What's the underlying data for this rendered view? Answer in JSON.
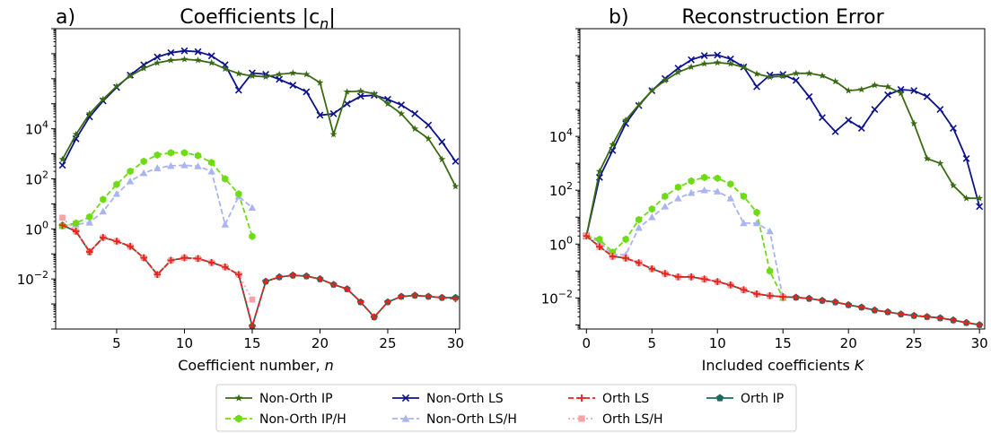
{
  "chart_data": [
    {
      "type": "line",
      "panel_label": "a)",
      "title": "Coefficients |c",
      "title_sub": "n",
      "title_end": "|",
      "xlabel": "Coefficient number, ",
      "xlabel_italic": "n",
      "yscale": "log",
      "xlim": [
        0.5,
        30.3
      ],
      "ylim": [
        0.0001,
        100000000
      ],
      "x_ticks": [
        5,
        10,
        15,
        20,
        25,
        30
      ],
      "y_ticks": [
        {
          "value": 0.01,
          "base": "10",
          "exp": "−2"
        },
        {
          "value": 1,
          "base": "10",
          "exp": "0"
        },
        {
          "value": 100,
          "base": "10",
          "exp": "2"
        },
        {
          "value": 10000,
          "base": "10",
          "exp": "4"
        }
      ],
      "series": [
        {
          "key": "nonorth_ip",
          "x": [
            1,
            2,
            3,
            4,
            5,
            6,
            7,
            8,
            9,
            10,
            11,
            12,
            13,
            14,
            15,
            16,
            17,
            18,
            19,
            20,
            21,
            22,
            23,
            24,
            25,
            26,
            27,
            28,
            29,
            30
          ],
          "y": [
            600,
            6000,
            40000,
            150000,
            500000,
            1300000,
            2600000,
            4300000,
            5500000,
            6000000,
            5500000,
            4300000,
            2500000,
            1600000,
            1300000,
            1200000,
            1500000,
            1700000,
            1500000,
            700000,
            6000,
            300000,
            320000,
            250000,
            100000,
            40000,
            10000,
            4000,
            600,
            50
          ]
        },
        {
          "key": "nonorth_ls",
          "x": [
            1,
            2,
            3,
            4,
            5,
            6,
            7,
            8,
            9,
            10,
            11,
            12,
            13,
            14,
            15,
            16,
            17,
            18,
            19,
            20,
            21,
            22,
            23,
            24,
            25,
            26,
            27,
            28,
            29,
            30
          ],
          "y": [
            350,
            4000,
            30000,
            130000,
            450000,
            1400000,
            3600000,
            7400000,
            11000000,
            13000000,
            12000000,
            8200000,
            3600000,
            350000,
            1700000,
            1500000,
            950000,
            550000,
            300000,
            35000,
            40000,
            100000,
            200000,
            220000,
            150000,
            90000,
            40000,
            14000,
            3000,
            500
          ]
        },
        {
          "key": "nonorth_ip_h",
          "x": [
            1,
            2,
            3,
            4,
            5,
            6,
            7,
            8,
            9,
            10,
            11,
            12,
            13,
            14,
            15
          ],
          "y": [
            1.3,
            1.7,
            3,
            15,
            60,
            200,
            500,
            900,
            1100,
            1100,
            850,
            450,
            100,
            25,
            0.5
          ]
        },
        {
          "key": "nonorth_ls_h",
          "x": [
            1,
            2,
            3,
            4,
            5,
            6,
            7,
            8,
            9,
            10,
            11,
            12,
            13,
            14,
            15
          ],
          "y": [
            1.3,
            1.5,
            1.8,
            5,
            25,
            80,
            170,
            270,
            330,
            350,
            320,
            200,
            1.5,
            20,
            7
          ]
        },
        {
          "key": "orth_ls",
          "x": [
            1,
            2,
            3,
            4,
            5,
            6,
            7,
            8,
            9,
            10,
            11,
            12,
            13,
            14,
            15,
            16,
            17,
            18,
            19,
            20,
            21,
            22,
            23,
            24,
            25,
            26,
            27,
            28,
            29,
            30
          ],
          "y": [
            1.4,
            0.8,
            0.12,
            0.45,
            0.32,
            0.2,
            0.07,
            0.015,
            0.055,
            0.07,
            0.065,
            0.045,
            0.03,
            0.015,
            0.00013,
            0.008,
            0.012,
            0.014,
            0.013,
            0.01,
            0.006,
            0.004,
            0.0012,
            0.0003,
            0.0012,
            0.002,
            0.0022,
            0.002,
            0.0018,
            0.0016
          ]
        },
        {
          "key": "orth_ls_h",
          "x": [
            1,
            2,
            3,
            4,
            5,
            6,
            7,
            8,
            9,
            10,
            11,
            12,
            13,
            14,
            15
          ],
          "y": [
            2.8,
            0.8,
            0.13,
            0.45,
            0.32,
            0.2,
            0.07,
            0.015,
            0.055,
            0.07,
            0.065,
            0.045,
            0.03,
            0.015,
            0.0015
          ]
        },
        {
          "key": "orth_ip",
          "x": [
            1,
            2,
            3,
            4,
            5,
            6,
            7,
            8,
            9,
            10,
            11,
            12,
            13,
            14,
            15,
            16,
            17,
            18,
            19,
            20,
            21,
            22,
            23,
            24,
            25,
            26,
            27,
            28,
            29,
            30
          ],
          "y": [
            1.4,
            0.8,
            0.12,
            0.45,
            0.32,
            0.2,
            0.07,
            0.015,
            0.055,
            0.07,
            0.065,
            0.045,
            0.03,
            0.015,
            0.00013,
            0.008,
            0.012,
            0.014,
            0.013,
            0.01,
            0.006,
            0.004,
            0.0012,
            0.0003,
            0.0012,
            0.002,
            0.0022,
            0.002,
            0.0018,
            0.0018
          ]
        }
      ]
    },
    {
      "type": "line",
      "panel_label": "b)",
      "title": "Reconstruction Error",
      "xlabel": "Included coefficients ",
      "xlabel_italic": "K",
      "yscale": "log",
      "xlim": [
        -0.5,
        30.4
      ],
      "ylim": [
        0.0007,
        100000000
      ],
      "x_ticks": [
        0,
        5,
        10,
        15,
        20,
        25,
        30
      ],
      "y_ticks": [
        {
          "value": 0.01,
          "base": "10",
          "exp": "−2"
        },
        {
          "value": 1,
          "base": "10",
          "exp": "0"
        },
        {
          "value": 100,
          "base": "10",
          "exp": "2"
        },
        {
          "value": 10000,
          "base": "10",
          "exp": "4"
        }
      ],
      "series": [
        {
          "key": "nonorth_ip",
          "x": [
            0,
            1,
            2,
            3,
            4,
            5,
            6,
            7,
            8,
            9,
            10,
            11,
            12,
            13,
            14,
            15,
            16,
            17,
            18,
            19,
            20,
            21,
            22,
            23,
            24,
            25,
            26,
            27,
            28,
            29,
            30
          ],
          "y": [
            2,
            500,
            5000,
            40000,
            150000,
            500000,
            1200000,
            2400000,
            3800000,
            5000000,
            5500000,
            5000000,
            3700000,
            2100000,
            1600000,
            1700000,
            2200000,
            2200000,
            1800000,
            1100000,
            500000,
            550000,
            800000,
            700000,
            400000,
            30000,
            1500,
            1000,
            150,
            50,
            50
          ]
        },
        {
          "key": "nonorth_ls",
          "x": [
            0,
            1,
            2,
            3,
            4,
            5,
            6,
            7,
            8,
            9,
            10,
            11,
            12,
            13,
            14,
            15,
            16,
            17,
            18,
            19,
            20,
            21,
            22,
            23,
            24,
            25,
            26,
            27,
            28,
            29,
            30
          ],
          "y": [
            2,
            300,
            3000,
            30000,
            140000,
            500000,
            1400000,
            3400000,
            7000000,
            10000000,
            10500000,
            7500000,
            3800000,
            700000,
            1900000,
            2000000,
            1200000,
            300000,
            50000,
            15000,
            40000,
            20000,
            100000,
            350000,
            550000,
            500000,
            300000,
            100000,
            20000,
            1500,
            25
          ]
        },
        {
          "key": "nonorth_ip_h",
          "x": [
            0,
            1,
            2,
            3,
            4,
            5,
            6,
            7,
            8,
            9,
            10,
            11,
            12,
            13,
            14,
            15
          ],
          "y": [
            2,
            1.5,
            0.5,
            1.5,
            8,
            20,
            60,
            130,
            220,
            300,
            280,
            170,
            60,
            15,
            0.1,
            0.01
          ]
        },
        {
          "key": "nonorth_ls_h",
          "x": [
            0,
            1,
            2,
            3,
            4,
            5,
            6,
            7,
            8,
            9,
            10,
            11,
            12,
            13,
            14,
            15
          ],
          "y": [
            2,
            1.2,
            0.4,
            0.4,
            4,
            10,
            25,
            50,
            80,
            100,
            90,
            50,
            6,
            6,
            3,
            0.01
          ]
        },
        {
          "key": "orth_ls",
          "x": [
            0,
            1,
            2,
            3,
            4,
            5,
            6,
            7,
            8,
            9,
            10,
            11,
            12,
            13,
            14,
            15,
            16,
            17,
            18,
            19,
            20,
            21,
            22,
            23,
            24,
            25,
            26,
            27,
            28,
            29,
            30
          ],
          "y": [
            2,
            0.8,
            0.35,
            0.3,
            0.2,
            0.12,
            0.08,
            0.06,
            0.06,
            0.05,
            0.04,
            0.03,
            0.02,
            0.014,
            0.012,
            0.011,
            0.0105,
            0.0095,
            0.008,
            0.007,
            0.0055,
            0.0045,
            0.0035,
            0.003,
            0.0025,
            0.0022,
            0.002,
            0.0018,
            0.0015,
            0.0012,
            0.001
          ]
        },
        {
          "key": "orth_ls_h",
          "x": [
            0,
            1,
            2,
            3,
            4,
            5,
            6,
            7,
            8,
            9,
            10,
            11,
            12,
            13,
            14,
            15
          ],
          "y": [
            2,
            0.8,
            0.35,
            0.3,
            0.2,
            0.12,
            0.08,
            0.06,
            0.06,
            0.05,
            0.04,
            0.03,
            0.02,
            0.014,
            0.012,
            0.011
          ]
        },
        {
          "key": "orth_ip",
          "x": [
            0,
            1,
            2,
            3,
            4,
            5,
            6,
            7,
            8,
            9,
            10,
            11,
            12,
            13,
            14,
            15,
            16,
            17,
            18,
            19,
            20,
            21,
            22,
            23,
            24,
            25,
            26,
            27,
            28,
            29,
            30
          ],
          "y": [
            2,
            0.8,
            0.35,
            0.3,
            0.2,
            0.12,
            0.08,
            0.06,
            0.06,
            0.05,
            0.04,
            0.03,
            0.02,
            0.014,
            0.012,
            0.011,
            0.0105,
            0.0095,
            0.008,
            0.007,
            0.0055,
            0.0045,
            0.0035,
            0.003,
            0.0025,
            0.0022,
            0.002,
            0.0018,
            0.0015,
            0.0012,
            0.001
          ]
        }
      ]
    }
  ],
  "legend": {
    "placement": "bottom-center",
    "entries": [
      {
        "key": "nonorth_ip",
        "label": "Non-Orth IP",
        "color": "#3a6b14",
        "marker": "star",
        "dash": "solid"
      },
      {
        "key": "nonorth_ip_h",
        "label": "Non-Orth IP/H",
        "color": "#6edc15",
        "marker": "hexagon",
        "dash": "dashed"
      },
      {
        "key": "nonorth_ls",
        "label": "Non-Orth LS",
        "color": "#0c138c",
        "marker": "x",
        "dash": "solid"
      },
      {
        "key": "nonorth_ls_h",
        "label": "Non-Orth LS/H",
        "color": "#aab4f0",
        "marker": "triangle",
        "dash": "dashed"
      },
      {
        "key": "orth_ls",
        "label": "Orth LS",
        "color": "#e8231c",
        "marker": "plus",
        "dash": "dashed"
      },
      {
        "key": "orth_ls_h",
        "label": "Orth LS/H",
        "color": "#f7a3a3",
        "marker": "square",
        "dash": "dotted"
      },
      {
        "key": "orth_ip",
        "label": "Orth IP",
        "color": "#1b6b63",
        "marker": "pentagon",
        "dash": "solid"
      }
    ]
  }
}
